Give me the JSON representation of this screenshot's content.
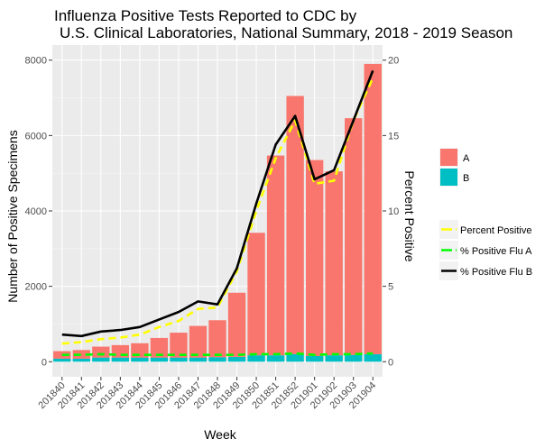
{
  "chart_data": {
    "type": "bar",
    "title_line1": "Influenza Positive Tests Reported to CDC by",
    "title_line2": "U.S. Clinical Laboratories, National Summary, 2018 - 2019 Season",
    "xlabel": "Week",
    "ylabel": "Number of Positive Specimens",
    "y2label": "Percent Positive",
    "ylim": [
      0,
      8000
    ],
    "y2lim": [
      0,
      20
    ],
    "yticks": [
      "0",
      "2000",
      "4000",
      "6000",
      "8000"
    ],
    "y2ticks": [
      "0",
      "5",
      "10",
      "15",
      "20"
    ],
    "grid": true,
    "legend_position": "right",
    "categories": [
      "201840",
      "201841",
      "201842",
      "201843",
      "201844",
      "201845",
      "201846",
      "201847",
      "201848",
      "201849",
      "201850",
      "201851",
      "201852",
      "201901",
      "201902",
      "201903",
      "201904"
    ],
    "bar_series": [
      {
        "name": "A",
        "color": "#F8766D",
        "values": [
          200,
          230,
          290,
          330,
          380,
          520,
          660,
          840,
          980,
          1700,
          3250,
          5300,
          6850,
          5200,
          4880,
          6280,
          7700
        ]
      },
      {
        "name": "B",
        "color": "#00BFC4",
        "values": [
          80,
          80,
          110,
          110,
          110,
          110,
          110,
          110,
          120,
          130,
          170,
          170,
          200,
          150,
          170,
          180,
          200
        ]
      }
    ],
    "line_series": [
      {
        "name": "Percent Positive",
        "color": "#FFFF00",
        "dashed": true,
        "values": [
          1.2,
          1.3,
          1.5,
          1.6,
          1.8,
          2.3,
          2.7,
          3.5,
          3.6,
          6.0,
          10.0,
          13.5,
          16.0,
          11.8,
          12.0,
          16.0,
          18.8
        ]
      },
      {
        "name": "% Positive Flu A",
        "color": "#00FF00",
        "dashed": true,
        "values": [
          0.45,
          0.45,
          0.5,
          0.45,
          0.45,
          0.45,
          0.45,
          0.45,
          0.45,
          0.45,
          0.5,
          0.5,
          0.55,
          0.45,
          0.5,
          0.5,
          0.55
        ]
      },
      {
        "name": "% Positive Flu B",
        "color": "#000000",
        "dashed": false,
        "values": [
          1.8,
          1.7,
          2.0,
          2.1,
          2.3,
          2.8,
          3.3,
          4.0,
          3.8,
          6.2,
          10.5,
          14.4,
          16.3,
          12.1,
          12.7,
          16.0,
          19.3
        ]
      }
    ]
  }
}
